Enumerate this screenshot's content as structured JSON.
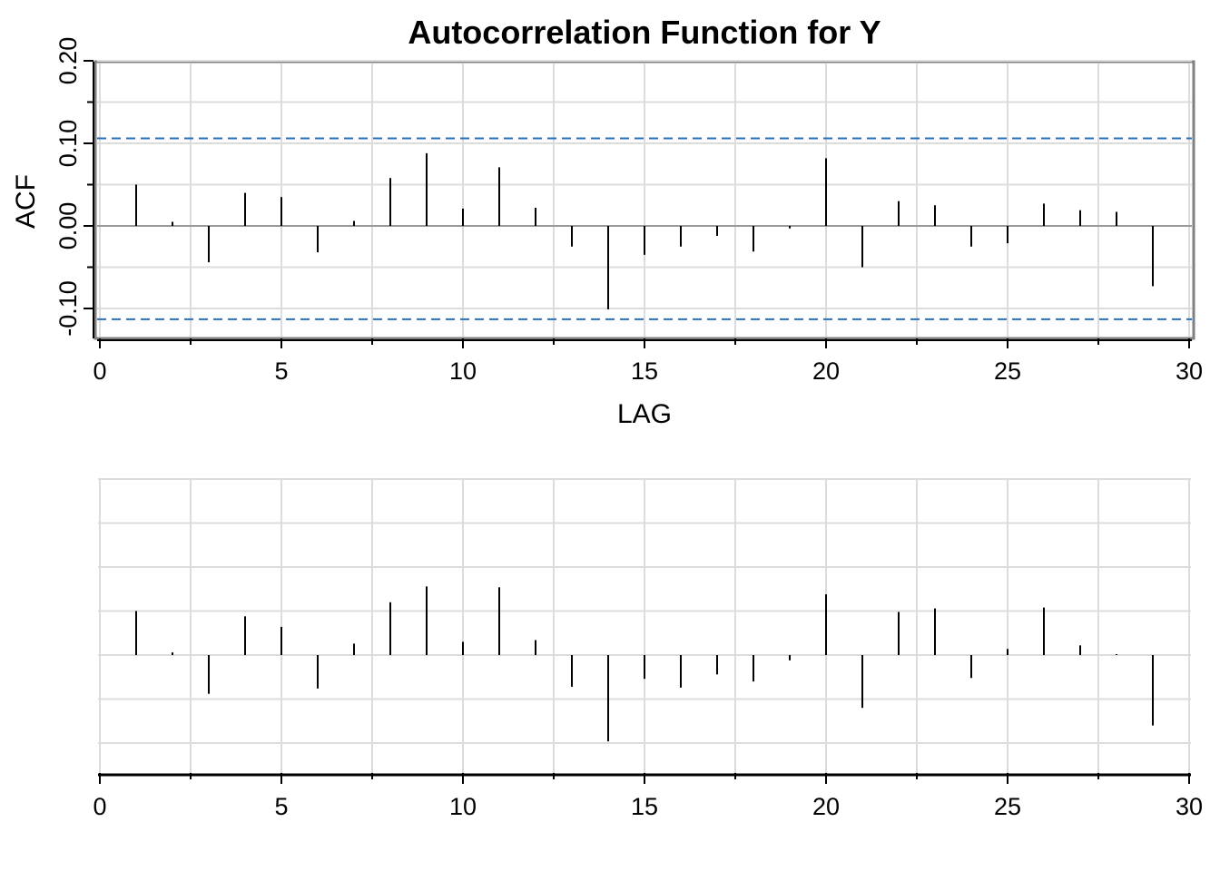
{
  "chart_data": [
    {
      "type": "bar",
      "title": "Autocorrelation Function for Y",
      "xlabel": "LAG",
      "ylabel": "ACF",
      "xlim": [
        0,
        30
      ],
      "ylim": [
        -0.135,
        0.2
      ],
      "x_ticks": [
        "0",
        "5",
        "10",
        "15",
        "20",
        "25",
        "30"
      ],
      "y_ticks": [
        "-0.10",
        "0.00",
        "0.10",
        "0.20"
      ],
      "grid": true,
      "confidence_band": [
        -0.113,
        0.106
      ],
      "x": [
        1,
        2,
        3,
        4,
        5,
        6,
        7,
        8,
        9,
        10,
        11,
        12,
        13,
        14,
        15,
        16,
        17,
        18,
        19,
        20,
        21,
        22,
        23,
        24,
        25,
        26,
        27,
        28,
        29
      ],
      "values": [
        0.05,
        0.005,
        -0.044,
        0.04,
        0.035,
        -0.032,
        0.006,
        0.058,
        0.088,
        0.021,
        0.071,
        0.022,
        -0.025,
        -0.101,
        -0.035,
        -0.025,
        -0.012,
        -0.031,
        -0.003,
        0.082,
        -0.05,
        0.03,
        0.025,
        -0.025,
        -0.021,
        0.027,
        0.019,
        0.017,
        -0.073
      ],
      "colors": {
        "line": "#000000",
        "band": "#2a6ebb",
        "grid": "#dcdcdc",
        "frame": "#808080"
      }
    },
    {
      "type": "bar",
      "title": "",
      "xlabel": "",
      "ylabel": "",
      "xlim": [
        0,
        30
      ],
      "x_ticks": [
        "0",
        "5",
        "10",
        "15",
        "20",
        "25",
        "30"
      ],
      "grid": true,
      "x": [
        1,
        2,
        3,
        4,
        5,
        6,
        7,
        8,
        9,
        10,
        11,
        12,
        13,
        14,
        15,
        16,
        17,
        18,
        19,
        20,
        21,
        22,
        23,
        24,
        25,
        26,
        27,
        28,
        29
      ],
      "values": [
        0.05,
        0.003,
        -0.044,
        0.044,
        0.032,
        -0.038,
        0.013,
        0.06,
        0.078,
        0.015,
        0.077,
        0.017,
        -0.036,
        -0.098,
        -0.027,
        -0.037,
        -0.022,
        -0.03,
        -0.006,
        0.069,
        -0.06,
        0.049,
        0.053,
        -0.026,
        0.007,
        0.054,
        0.011,
        0.001,
        -0.08
      ],
      "colors": {
        "line": "#000000",
        "grid": "#dcdcdc",
        "axis": "#000000"
      }
    }
  ]
}
